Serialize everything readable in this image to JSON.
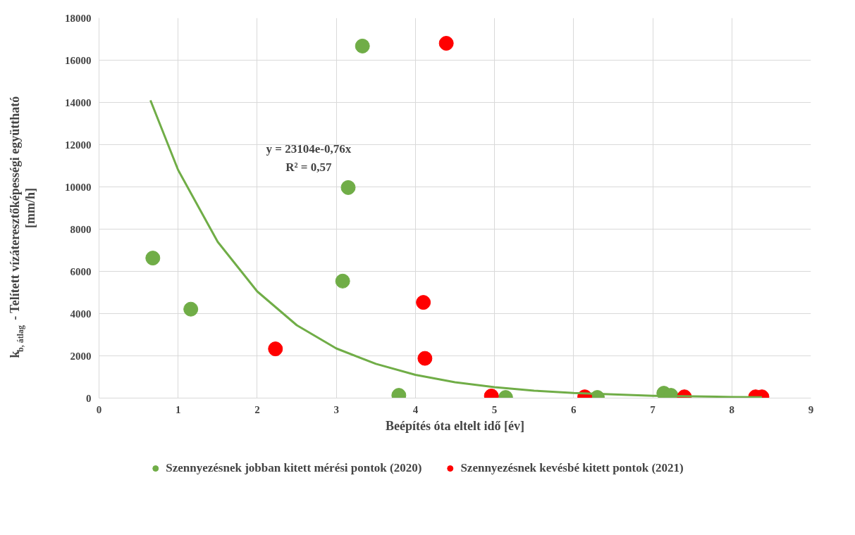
{
  "chart_data": {
    "type": "scatter",
    "xlabel": "Beépítés óta eltelt idő [év]",
    "ylabel": "k$_{b, átlag}$ - Telített vízáteresztőképességi együttható\n[mm/h]",
    "xlim": [
      0,
      9
    ],
    "xticks": [
      0,
      1,
      2,
      3,
      4,
      5,
      6,
      7,
      8,
      9
    ],
    "ylim": [
      0,
      18000
    ],
    "yticks": [
      0,
      2000,
      4000,
      6000,
      8000,
      10000,
      12000,
      14000,
      16000,
      18000
    ],
    "grid": true,
    "legend": "bottom",
    "marker": "circle",
    "series": [
      {
        "name": "Szennyezésnek jobban kitett mérési pontok (2020)",
        "color": "#70ad47",
        "x": [
          0.68,
          1.16,
          3.08,
          3.15,
          3.33,
          3.79,
          5.14,
          6.3,
          7.14,
          7.23
        ],
        "values": [
          6630,
          4210,
          5540,
          9970,
          16670,
          130,
          30,
          30,
          230,
          130
        ]
      },
      {
        "name": "Szennyezésnek kevésbé kitett pontok (2021)",
        "color": "#ff0000",
        "x": [
          2.23,
          4.39,
          4.1,
          4.12,
          4.96,
          6.14,
          7.4,
          8.3,
          8.38
        ],
        "values": [
          2330,
          16800,
          4530,
          1880,
          100,
          60,
          60,
          60,
          60
        ]
      },
      {
        "type": "line",
        "marker": "none",
        "color": "#70ad47",
        "x": [
          0.65,
          1,
          1.5,
          2,
          2.5,
          3,
          3.5,
          4,
          4.5,
          5,
          5.5,
          6,
          7,
          8,
          8.38
        ],
        "values": [
          14100,
          10800,
          7400,
          5050,
          3450,
          2350,
          1620,
          1100,
          750,
          520,
          350,
          240,
          110,
          53,
          40
        ]
      }
    ],
    "annotations": [
      "y = 23104e-0,76x",
      "R² = 0,57"
    ]
  }
}
